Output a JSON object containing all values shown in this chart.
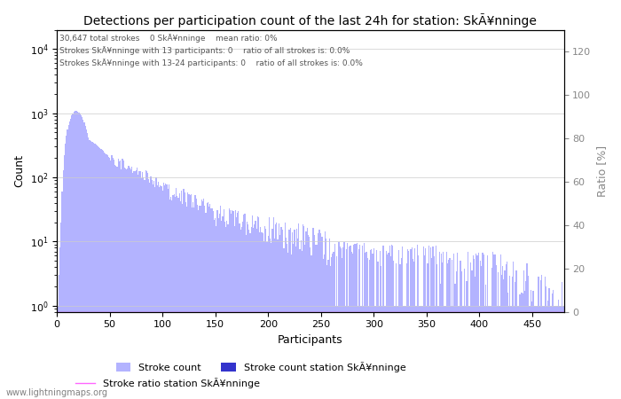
{
  "title": "Detections per participation count of the last 24h for station: SkÃ¥nninge",
  "annotation_line1": "30,647 total strokes    0 SkÃ¥nninge    mean ratio: 0%",
  "annotation_line2": "Strokes SkÃ¥nninge with 13 participants: 0    ratio of all strokes is: 0.0%",
  "annotation_line3": "Strokes SkÃ¥nninge with 13-24 participants: 0    ratio of all strokes is: 0.0%",
  "xlabel": "Participants",
  "ylabel_left": "Count",
  "ylabel_right": "Ratio [%]",
  "watermark": "www.lightningmaps.org",
  "legend_stroke_count": "Stroke count",
  "legend_stroke_station": "Stroke count station SkÃ¥nninge",
  "legend_stroke_ratio": "Stroke ratio station SkÃ¥nninge",
  "bar_color_global": "#b3b3ff",
  "bar_color_station": "#3333cc",
  "ratio_line_color": "#ff66ff",
  "ylim_left": [
    0.8,
    20000
  ],
  "ylim_right": [
    0,
    130
  ],
  "xlim": [
    0,
    480
  ],
  "yticks_right": [
    0,
    20,
    40,
    60,
    80,
    100,
    120
  ],
  "xticks": [
    0,
    50,
    100,
    150,
    200,
    250,
    300,
    350,
    400,
    450
  ],
  "background_color": "#ffffff",
  "figsize": [
    7.0,
    4.5
  ],
  "dpi": 100
}
